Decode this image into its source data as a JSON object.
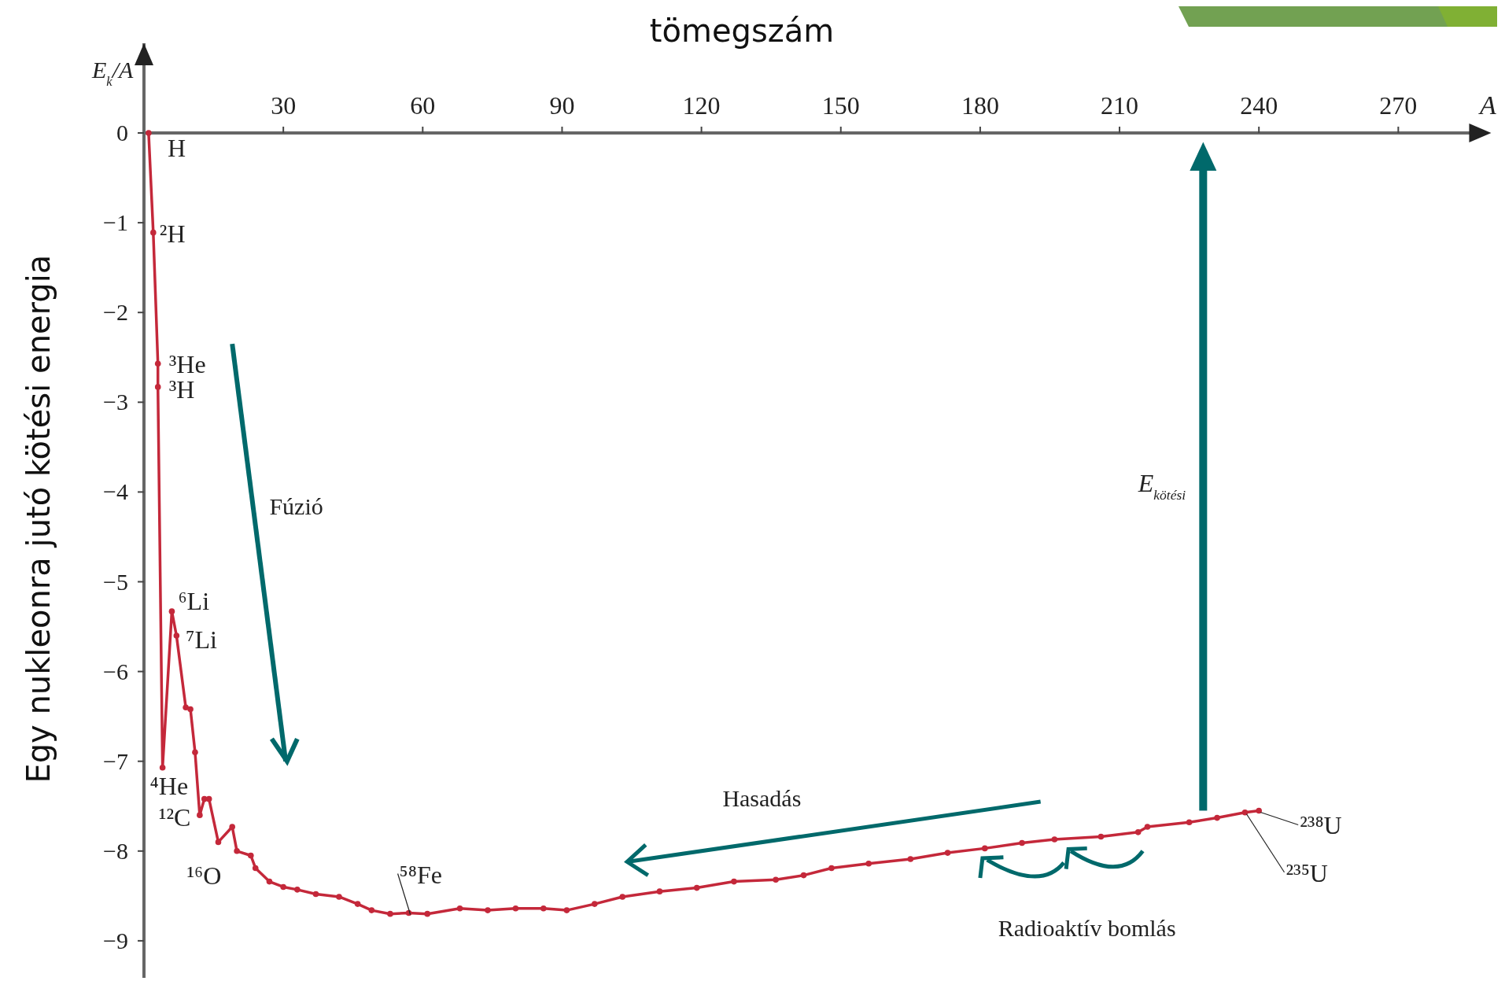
{
  "chart_data": {
    "type": "line",
    "title": "tömegszám",
    "xlabel": "A",
    "ylabel": "Egy nukleonra jutó kötési energia",
    "x": [
      1,
      2,
      3,
      3,
      4,
      6,
      7,
      9,
      10,
      11,
      12,
      13,
      14,
      16,
      19,
      20,
      23,
      24,
      27,
      30,
      33,
      37,
      42,
      46,
      49,
      53,
      57,
      61,
      68,
      74,
      80,
      86,
      91,
      97,
      103,
      111,
      119,
      127,
      136,
      142,
      148,
      156,
      165,
      173,
      181,
      189,
      196,
      206,
      214,
      216,
      225,
      231,
      237,
      240
    ],
    "series": [
      {
        "color": "#c4283a",
        "values": [
          0,
          -1.11,
          -2.57,
          -2.83,
          -7.07,
          -5.33,
          -5.6,
          -6.4,
          -6.42,
          -6.9,
          -7.6,
          -7.42,
          -7.42,
          -7.9,
          -7.73,
          -8.0,
          -8.05,
          -8.19,
          -8.34,
          -8.4,
          -8.43,
          -8.48,
          -8.51,
          -8.59,
          -8.66,
          -8.7,
          -8.69,
          -8.7,
          -8.64,
          -8.66,
          -8.64,
          -8.64,
          -8.66,
          -8.59,
          -8.51,
          -8.45,
          -8.41,
          -8.34,
          -8.32,
          -8.27,
          -8.19,
          -8.14,
          -8.09,
          -8.02,
          -7.97,
          -7.91,
          -7.87,
          -7.84,
          -7.79,
          -7.73,
          -7.68,
          -7.63,
          -7.57,
          -7.55
        ]
      }
    ],
    "marker": "circle",
    "line_style": "solid",
    "xlim": [
      0,
      290
    ],
    "xticks": [
      30,
      60,
      90,
      120,
      150,
      180,
      210,
      240,
      270
    ],
    "ylim": [
      -9.5,
      1
    ],
    "yticks": [
      0,
      {
        "value": -1,
        "label": "−1"
      },
      {
        "value": -2,
        "label": "−2"
      },
      {
        "value": -3,
        "label": "−3"
      },
      {
        "value": -4,
        "label": "−4"
      },
      {
        "value": -5,
        "label": "−5"
      },
      {
        "value": -6,
        "label": "−6"
      },
      {
        "value": -7,
        "label": "−7"
      },
      {
        "value": -8,
        "label": "−8"
      },
      {
        "value": -9,
        "label": "−9"
      }
    ],
    "annotations": [
      {
        "text": "H",
        "x": 1,
        "y": 0
      },
      {
        "text": "²H",
        "x": 2,
        "y": -1.11
      },
      {
        "text": "³He",
        "x": 3,
        "y": -2.57
      },
      {
        "text": "³H",
        "x": 3,
        "y": -2.83
      },
      {
        "text": "⁴He",
        "x": 4,
        "y": -7.07
      },
      {
        "text": "⁶Li",
        "x": 6,
        "y": -5.33
      },
      {
        "text": "⁷Li",
        "x": 7,
        "y": -5.6
      },
      {
        "text": "¹²C",
        "x": 12,
        "y": -7.6
      },
      {
        "text": "¹⁶O",
        "x": 16,
        "y": -7.9
      },
      {
        "text": "⁵⁸Fe",
        "x": 57,
        "y": -8.69
      },
      {
        "text": "²³⁸U",
        "x": 240,
        "y": -7.55
      },
      {
        "text": "²³⁵U",
        "x": 237,
        "y": -7.57
      },
      "E$_{k}$/A",
      "Fúzió",
      "Hasadás",
      "E$_{kötési}$",
      "Radioaktív bomlás"
    ]
  }
}
